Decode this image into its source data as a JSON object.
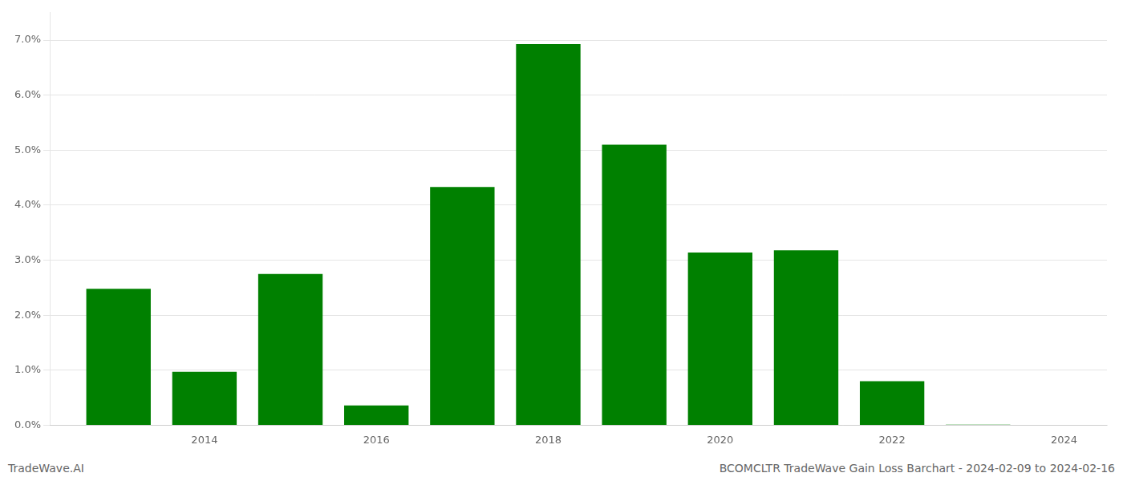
{
  "chart_data": {
    "type": "bar",
    "title": "BCOMCLTR TradeWave Gain Loss Barchart - 2024-02-09 to 2024-02-16",
    "annotations": [
      "TradeWave.AI"
    ],
    "x": [
      2013,
      2014,
      2015,
      2016,
      2017,
      2018,
      2019,
      2020,
      2021,
      2022,
      2023
    ],
    "values": [
      0.0248,
      0.0097,
      0.0275,
      0.0036,
      0.0433,
      0.0693,
      0.051,
      0.0314,
      0.0318,
      0.008,
      0.0001
    ],
    "color": "#008000",
    "xlim": [
      2012.2,
      2024.5
    ],
    "xticks": [
      2014,
      2016,
      2018,
      2020,
      2022,
      2024
    ],
    "ylim": [
      0,
      0.075
    ],
    "yticks": [
      {
        "value": 0.0,
        "label": "0.0%"
      },
      {
        "value": 0.01,
        "label": "1.0%"
      },
      {
        "value": 0.02,
        "label": "2.0%"
      },
      {
        "value": 0.03,
        "label": "3.0%"
      },
      {
        "value": 0.04,
        "label": "4.0%"
      },
      {
        "value": 0.05,
        "label": "5.0%"
      },
      {
        "value": 0.06,
        "label": "6.0%"
      },
      {
        "value": 0.07,
        "label": "7.0%"
      }
    ],
    "grid": true
  }
}
